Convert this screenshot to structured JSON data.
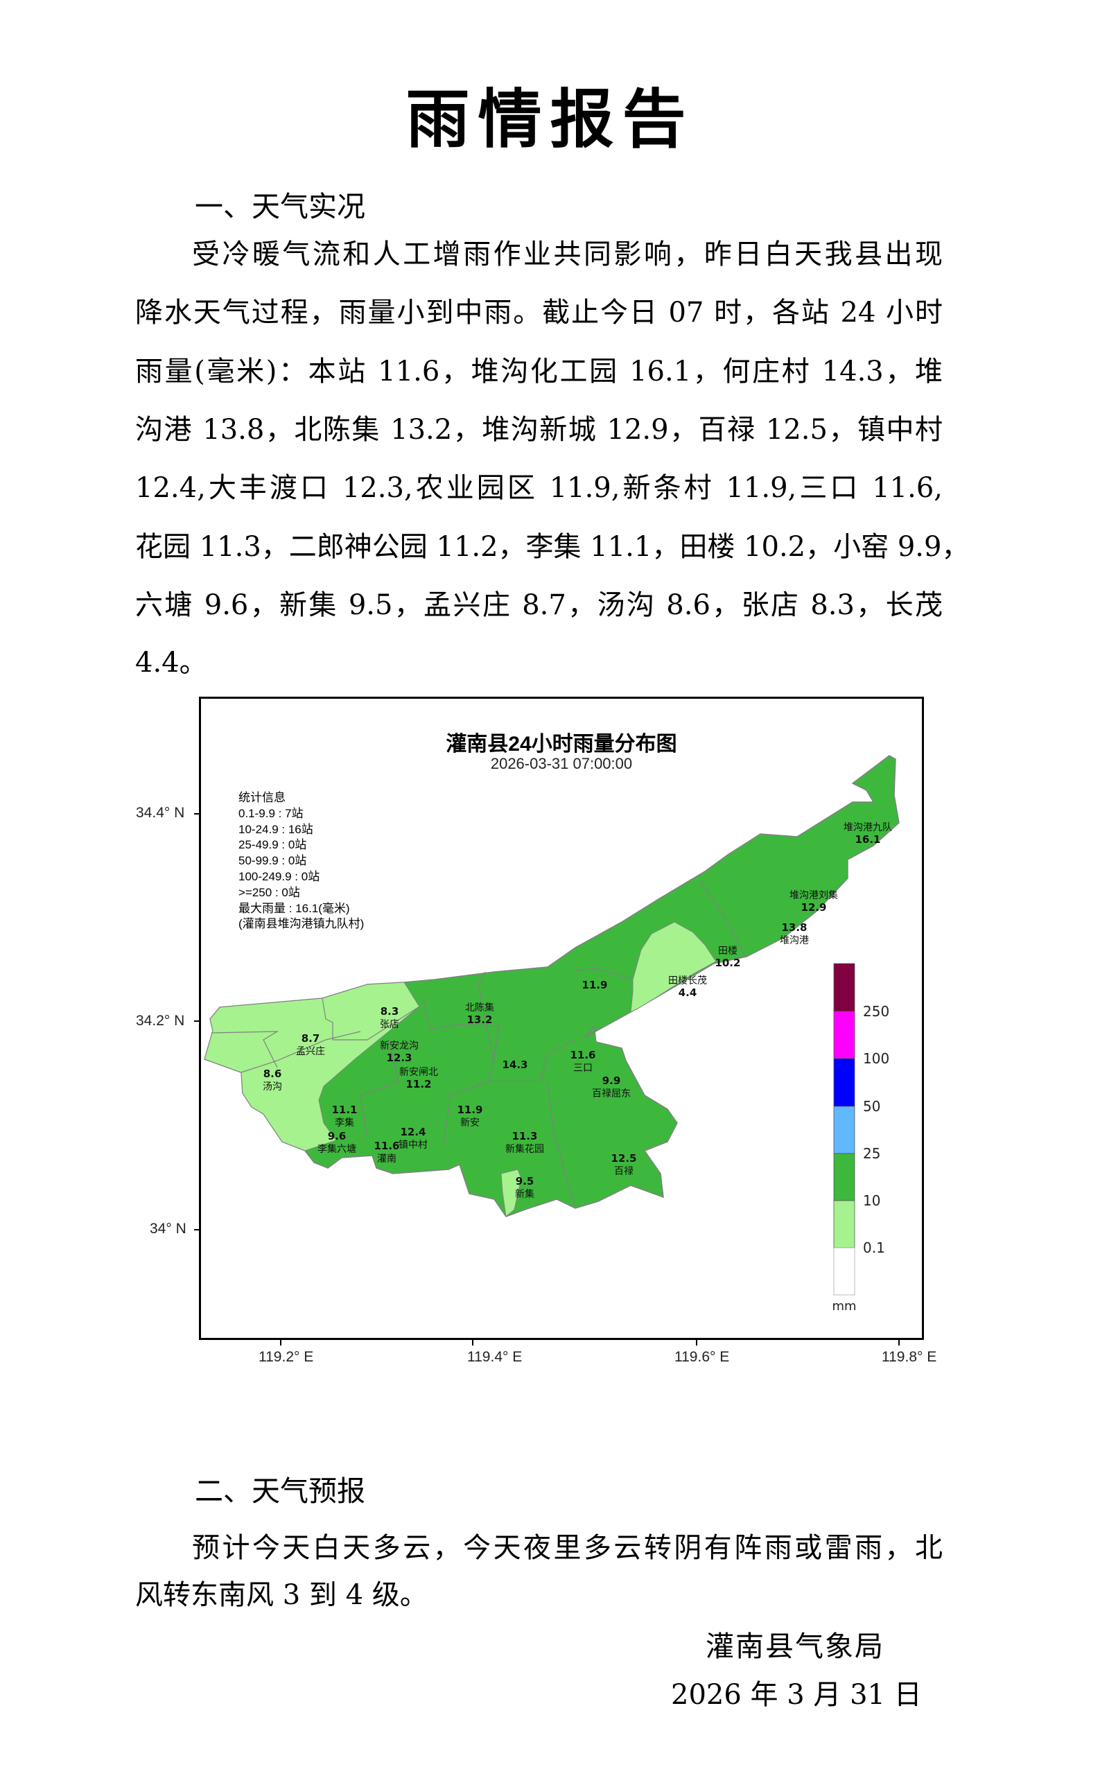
{
  "title": "雨情报告",
  "section1": {
    "heading": "一、天气实况",
    "lines": [
      "受冷暖气流和人工增雨作业共同影响，昨日白天我县出现",
      "降水天气过程，雨量小到中雨。截止今日 07 时，各站 24 小时",
      "雨量(毫米)：本站 11.6，堆沟化工园 16.1，何庄村 14.3，堆",
      "沟港 13.8，北陈集 13.2，堆沟新城 12.9，百禄 12.5，镇中村",
      "12.4,大丰渡口 12.3,农业园区 11.9,新条村 11.9,三口 11.6,",
      "花园 11.3，二郎神公园 11.2，李集 11.1，田楼 10.2，小窑 9.9，",
      "六塘 9.6，新集 9.5，孟兴庄 8.7，汤沟 8.6，张店 8.3，长茂",
      "4.4。"
    ]
  },
  "map": {
    "title": "灌南县24小时雨量分布图",
    "subtitle": "2026-03-31 07:00:00",
    "lat_ticks": [
      "34.4° N",
      "34.2° N",
      "34° N"
    ],
    "lon_ticks": [
      "119.2° E",
      "119.4° E",
      "119.6° E",
      "119.8° E"
    ],
    "stats": [
      "统计信息",
      "0.1-9.9 : 7站",
      "10-24.9 : 16站",
      "25-49.9 : 0站",
      "50-99.9 : 0站",
      "100-249.9 : 0站",
      ">=250 : 0站",
      "最大雨量 : 16.1(毫米)",
      "(灌南县堆沟港镇九队村)"
    ],
    "legend": {
      "unit": "mm",
      "labels": [
        "250",
        "100",
        "50",
        "25",
        "10",
        "0.1"
      ],
      "colors": [
        "#800040",
        "#ff00ff",
        "#0000ff",
        "#61b8ff",
        "#3db83d",
        "#a6f28f",
        "#ffffff"
      ]
    },
    "colors": {
      "light": "#a6f28f",
      "green": "#3db83d",
      "border": "#808080"
    },
    "stations": [
      {
        "name": "堆沟港九队",
        "value": "16.1"
      },
      {
        "name": "堆沟港刘集",
        "value": "12.9"
      },
      {
        "name": "堆沟港",
        "value": "13.8"
      },
      {
        "name": "田楼",
        "value": "10.2"
      },
      {
        "name": "田楼长茂",
        "value": "4.4"
      },
      {
        "name": "",
        "value": "11.9"
      },
      {
        "name": "张店",
        "value": "8.3"
      },
      {
        "name": "孟兴庄",
        "value": "8.7"
      },
      {
        "name": "汤沟",
        "value": "8.6"
      },
      {
        "name": "新安龙沟",
        "value": "12.3"
      },
      {
        "name": "新安闸北",
        "value": "11.2"
      },
      {
        "name": "北陈集",
        "value": "13.2"
      },
      {
        "name": "",
        "value": "14.3"
      },
      {
        "name": "李集",
        "value": "11.1"
      },
      {
        "name": "李集六塘",
        "value": "9.6"
      },
      {
        "name": "镇中村",
        "value": "12.4"
      },
      {
        "name": "灌南",
        "value": "11.6"
      },
      {
        "name": "新安",
        "value": "11.9"
      },
      {
        "name": "新集花园",
        "value": "11.3"
      },
      {
        "name": "新集",
        "value": "9.5"
      },
      {
        "name": "三口",
        "value": "11.6"
      },
      {
        "name": "百禄屈东",
        "value": "9.9"
      },
      {
        "name": "百禄",
        "value": "12.5"
      }
    ]
  },
  "section2": {
    "heading": "二、天气预报",
    "lines": [
      "预计今天白天多云，今天夜里多云转阴有阵雨或雷雨，北",
      "风转东南风 3 到 4 级。"
    ]
  },
  "signature": {
    "org": "灌南县气象局",
    "date": "2026 年 3 月 31 日"
  }
}
